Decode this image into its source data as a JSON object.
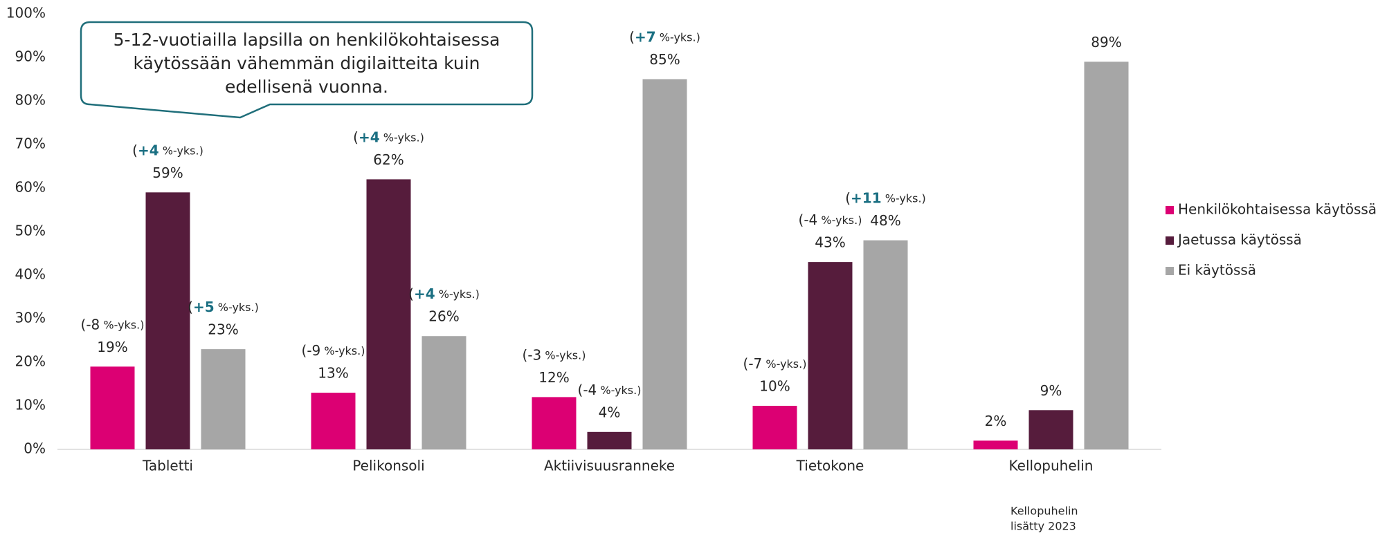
{
  "chart_data": {
    "type": "bar",
    "categories": [
      "Tabletti",
      "Pelikonsoli",
      "Aktiivisuusranneke",
      "Tietokone",
      "Kellopuhelin"
    ],
    "series": [
      {
        "name": "Henkilökohtaisessa käytössä",
        "color": "#dc0073",
        "values": [
          19,
          13,
          12,
          10,
          2
        ],
        "value_labels": [
          "19%",
          "13%",
          "12%",
          "10%",
          "2%"
        ],
        "change_labels": [
          "(-8 %-yks.)",
          "(-9 %-yks.)",
          "(-3 %-yks.)",
          "(-7 %-yks.)",
          null
        ]
      },
      {
        "name": "Jaetussa käytössä",
        "color": "#561c3c",
        "values": [
          59,
          62,
          4,
          43,
          9
        ],
        "value_labels": [
          "59%",
          "62%",
          "4%",
          "43%",
          "9%"
        ],
        "change_labels": [
          "(+4 %-yks.)",
          "(+4 %-yks.)",
          "(-4 %-yks.)",
          "(-4 %-yks.)",
          null
        ]
      },
      {
        "name": "Ei käytössä",
        "color": "#a6a6a6",
        "values": [
          23,
          26,
          85,
          48,
          89
        ],
        "value_labels": [
          "23%",
          "26%",
          "85%",
          "48%",
          "89%"
        ],
        "change_labels": [
          "(+5 %-yks.)",
          "(+4 %-yks.)",
          "(+7 %-yks.)",
          "(+11 %-yks.)",
          null
        ]
      }
    ],
    "ylim": [
      0,
      100
    ],
    "yticks": [
      {
        "value": 0,
        "label": "0%"
      },
      {
        "value": 10,
        "label": "10%"
      },
      {
        "value": 20,
        "label": "20%"
      },
      {
        "value": 30,
        "label": "30%"
      },
      {
        "value": 40,
        "label": "40%"
      },
      {
        "value": 50,
        "label": "50%"
      },
      {
        "value": 60,
        "label": "60%"
      },
      {
        "value": 70,
        "label": "70%"
      },
      {
        "value": 80,
        "label": "80%"
      },
      {
        "value": 90,
        "label": "90%"
      },
      {
        "value": 100,
        "label": "100%"
      }
    ],
    "legend": "right",
    "callout": [
      "5-12-vuotiailla lapsilla on henkilökohtaisessa",
      "käytössään vähemmän digilaitteita kuin",
      "edellisenä vuonna."
    ],
    "footnote": [
      "Kellopuhelin",
      "lisätty 2023"
    ]
  }
}
